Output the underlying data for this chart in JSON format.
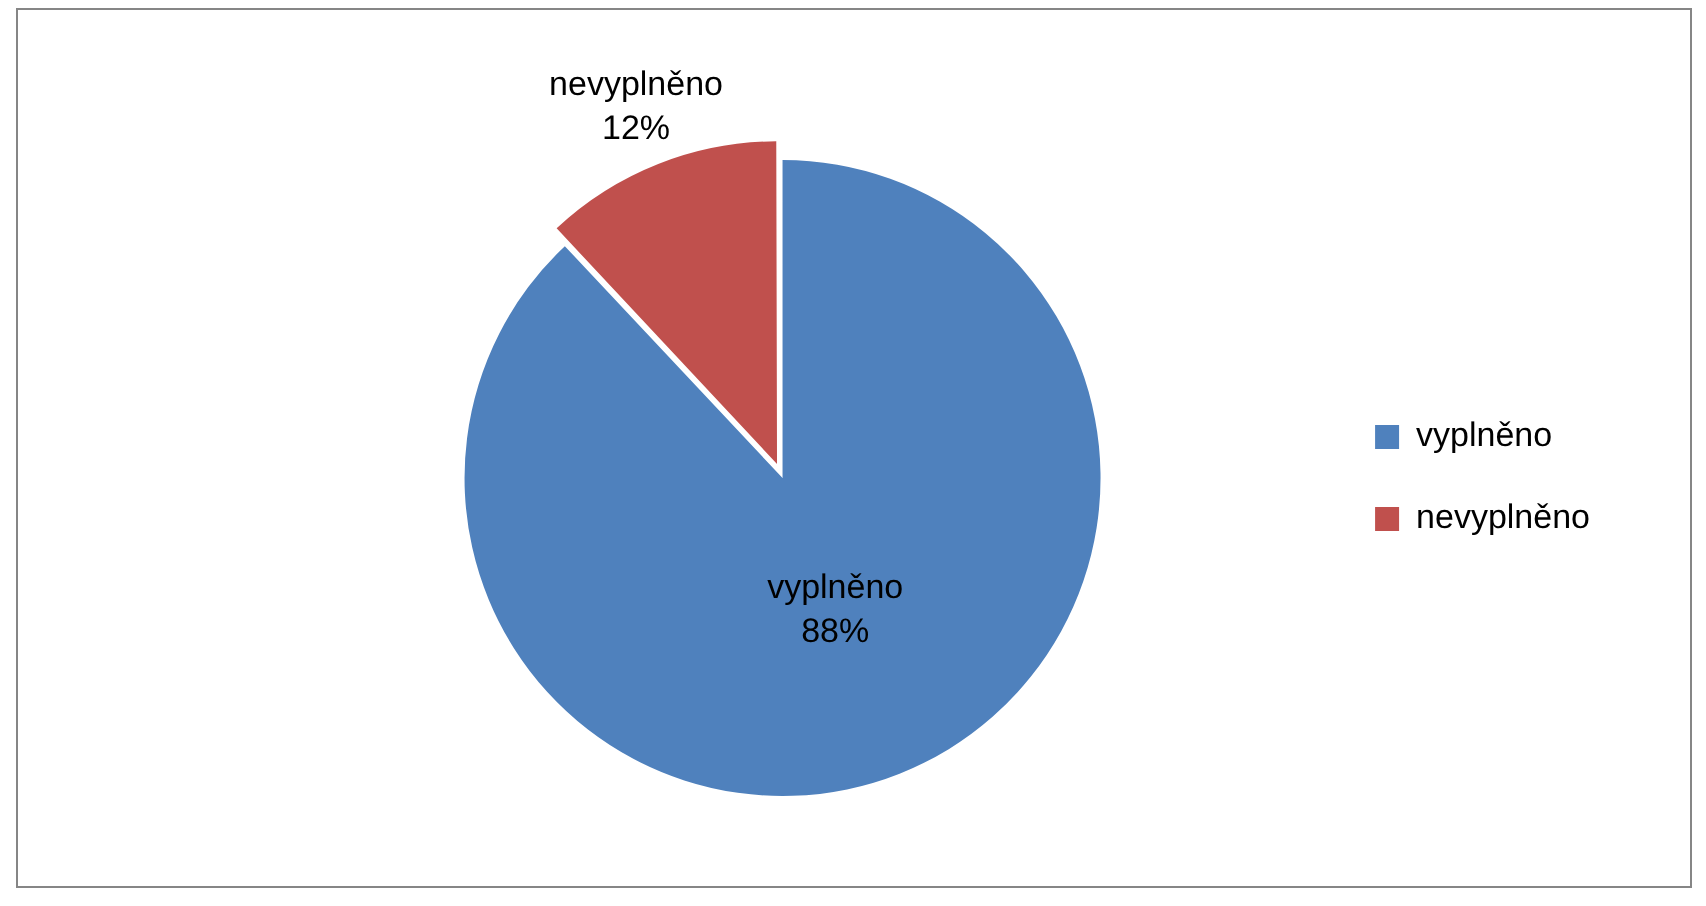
{
  "chart_data": {
    "type": "pie",
    "categories": [
      "vyplněno",
      "nevyplněno"
    ],
    "values": [
      88,
      12
    ],
    "colors": [
      "#4f81bd",
      "#c0504d"
    ],
    "value_labels": [
      "88%",
      "12%"
    ],
    "legend": "right"
  }
}
